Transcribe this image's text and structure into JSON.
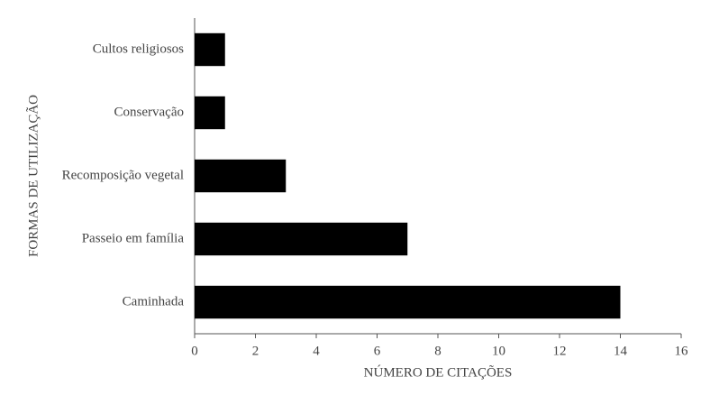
{
  "chart_data": {
    "type": "bar",
    "orientation": "horizontal",
    "xlabel": "NÚMERO DE CITAÇÕES",
    "ylabel": "FORMAS DE UTILIZAÇÃO",
    "categories": [
      "Cultos religiosos",
      "Conservação",
      "Recomposição vegetal",
      "Passeio em família",
      "Caminhada"
    ],
    "values": [
      1,
      1,
      3,
      7,
      14
    ],
    "color": "#000000",
    "xlim": [
      0,
      16
    ],
    "xticks": [
      0,
      2,
      4,
      6,
      8,
      10,
      12,
      14,
      16
    ],
    "grid": false
  }
}
